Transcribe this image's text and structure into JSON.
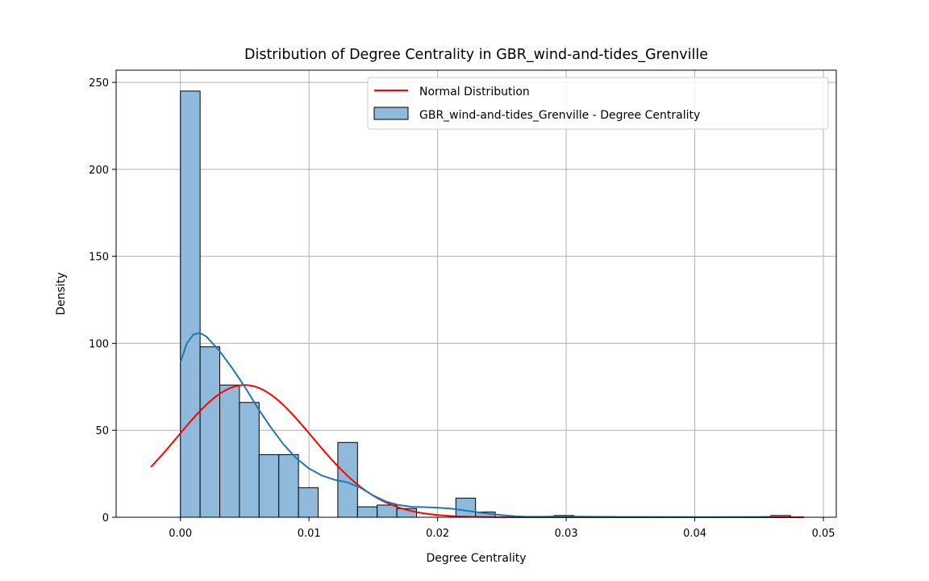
{
  "chart_data": {
    "type": "bar",
    "title": "Distribution of Degree Centrality in GBR_wind-and-tides_Grenville",
    "xlabel": "Degree Centrality",
    "ylabel": "Density",
    "xlim": [
      -0.005,
      0.051
    ],
    "ylim": [
      0,
      257
    ],
    "xticks": [
      0.0,
      0.01,
      0.02,
      0.03,
      0.04,
      0.05
    ],
    "xtick_labels": [
      "0.00",
      "0.01",
      "0.02",
      "0.03",
      "0.04",
      "0.05"
    ],
    "yticks": [
      0,
      50,
      100,
      150,
      200,
      250
    ],
    "ytick_labels": [
      "0",
      "50",
      "100",
      "150",
      "200",
      "250"
    ],
    "grid": true,
    "legend_position": "top-right",
    "colors": {
      "bar_fill": "#8fbadb",
      "bar_edge": "#000000",
      "kde": "#1f77b4",
      "normal": "#ff0000",
      "grid": "#b0b0b0"
    },
    "histogram": {
      "name": "GBR_wind-and-tides_Grenville - Degree Centrality",
      "bin_width": 0.00153,
      "bin_starts": [
        0.0,
        0.00153,
        0.00306,
        0.00459,
        0.00612,
        0.00765,
        0.00918,
        0.01224,
        0.01377,
        0.0153,
        0.01683,
        0.02142,
        0.02295,
        0.02907,
        0.04591
      ],
      "values": [
        245,
        98,
        76,
        66,
        36,
        36,
        17,
        43,
        6,
        7,
        5,
        11,
        3,
        1,
        1
      ]
    },
    "histogram_notes": "",
    "series": [
      {
        "name": "Normal Distribution",
        "kind": "line",
        "mean": 0.005,
        "std": 0.00525,
        "x_range": [
          -0.0023,
          0.0485
        ]
      },
      {
        "kind": "kde-line",
        "x": [
          0.0,
          0.0005,
          0.001,
          0.0015,
          0.002,
          0.003,
          0.004,
          0.005,
          0.006,
          0.007,
          0.008,
          0.009,
          0.01,
          0.011,
          0.012,
          0.013,
          0.014,
          0.015,
          0.016,
          0.017,
          0.018,
          0.019,
          0.02,
          0.021,
          0.022,
          0.023,
          0.024,
          0.025,
          0.026,
          0.027,
          0.028,
          0.029,
          0.03,
          0.032,
          0.034,
          0.036,
          0.04,
          0.045,
          0.046
        ],
        "y": [
          89,
          100,
          105,
          106,
          104,
          96,
          86,
          75,
          63,
          52,
          42,
          34,
          28,
          24,
          21.5,
          20,
          17,
          12.5,
          9,
          7,
          6,
          5.8,
          5.5,
          5,
          4,
          3,
          2,
          1.2,
          0.6,
          0.3,
          0.3,
          0.4,
          0.4,
          0.3,
          0.2,
          0.15,
          0.1,
          0.2,
          0.3
        ]
      }
    ]
  }
}
